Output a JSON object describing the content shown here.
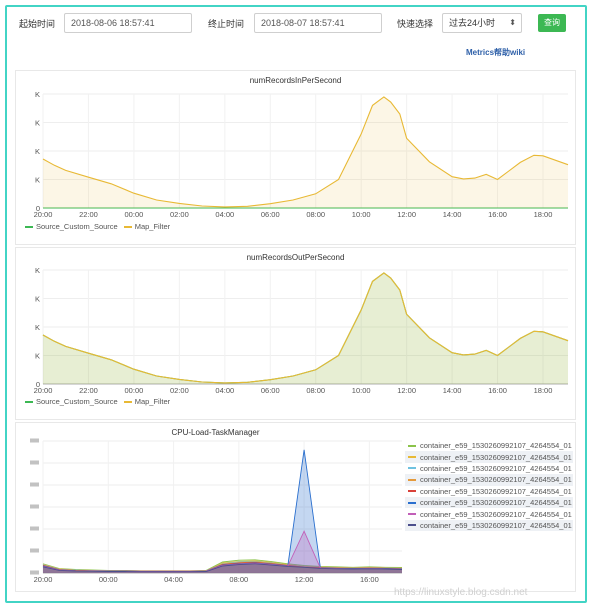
{
  "toolbar": {
    "start_label": "起始时间",
    "start_value": "2018-08-06 18:57:41",
    "end_label": "终止时间",
    "end_value": "2018-08-07 18:57:41",
    "quick_label": "快速选择",
    "quick_value": "过去24小时",
    "query_label": "查询",
    "wiki_label": "Metrics帮助wiki"
  },
  "colors": {
    "accent": "#42d4c5",
    "query_button": "#3cb853",
    "wiki_link": "#2d5fa8"
  },
  "chart_data": [
    {
      "type": "area",
      "title": "numRecordsInPerSecond",
      "x_ticks": [
        "20:00",
        "22:00",
        "00:00",
        "02:00",
        "04:00",
        "06:00",
        "08:00",
        "10:00",
        "12:00",
        "14:00",
        "16:00",
        "18:00"
      ],
      "y_ticks": [
        "0",
        "K",
        "K",
        "K",
        "K"
      ],
      "legend_position": "bottom-left",
      "series": [
        {
          "name": "Source_Custom_Source",
          "color": "#3cb853",
          "x": [
            0,
            2,
            4,
            6,
            8,
            10,
            12,
            14,
            16,
            18,
            20,
            22,
            23.1
          ],
          "y": [
            0,
            0,
            0,
            0,
            0,
            0,
            0,
            0,
            0,
            0,
            0,
            0,
            0
          ]
        },
        {
          "name": "Map_Filter",
          "color": "#e8b935",
          "x": [
            0,
            0.5,
            1,
            2,
            3,
            4,
            5,
            6,
            7,
            8,
            9,
            10,
            11,
            12,
            13,
            14,
            14.5,
            15,
            15.3,
            15.7,
            16,
            17,
            18,
            18.5,
            19,
            19.5,
            20,
            21,
            21.6,
            22,
            23.1
          ],
          "y": [
            1.72,
            1.5,
            1.32,
            1.08,
            0.85,
            0.52,
            0.28,
            0.16,
            0.07,
            0.04,
            0.06,
            0.15,
            0.28,
            0.5,
            1.0,
            2.6,
            3.6,
            3.9,
            3.72,
            3.3,
            2.45,
            1.62,
            1.1,
            1.02,
            1.05,
            1.18,
            1.0,
            1.6,
            1.85,
            1.83,
            1.52
          ]
        }
      ]
    },
    {
      "type": "area",
      "title": "numRecordsOutPerSecond",
      "x_ticks": [
        "20:00",
        "22:00",
        "00:00",
        "02:00",
        "04:00",
        "06:00",
        "08:00",
        "10:00",
        "12:00",
        "14:00",
        "16:00",
        "18:00"
      ],
      "y_ticks": [
        "0",
        "K",
        "K",
        "K",
        "K"
      ],
      "legend_position": "bottom-left",
      "series": [
        {
          "name": "Source_Custom_Source",
          "color": "#3cb853",
          "x": [
            0,
            0.5,
            1,
            2,
            3,
            4,
            5,
            6,
            7,
            8,
            9,
            10,
            11,
            12,
            13,
            14,
            14.5,
            15,
            15.3,
            15.7,
            16,
            17,
            18,
            18.5,
            19,
            19.5,
            20,
            21,
            21.6,
            22,
            23.1
          ],
          "y": [
            1.72,
            1.5,
            1.32,
            1.08,
            0.85,
            0.52,
            0.28,
            0.16,
            0.07,
            0.04,
            0.06,
            0.15,
            0.28,
            0.5,
            1.0,
            2.6,
            3.6,
            3.9,
            3.72,
            3.3,
            2.45,
            1.62,
            1.1,
            1.02,
            1.05,
            1.18,
            1.0,
            1.6,
            1.85,
            1.83,
            1.52
          ]
        },
        {
          "name": "Map_Filter",
          "color": "#e8b935",
          "x": [
            0,
            0.5,
            1,
            2,
            3,
            4,
            5,
            6,
            7,
            8,
            9,
            10,
            11,
            12,
            13,
            14,
            14.5,
            15,
            15.3,
            15.7,
            16,
            17,
            18,
            18.5,
            19,
            19.5,
            20,
            21,
            21.6,
            22,
            23.1
          ],
          "y": [
            1.72,
            1.5,
            1.32,
            1.08,
            0.85,
            0.52,
            0.28,
            0.16,
            0.07,
            0.04,
            0.06,
            0.15,
            0.28,
            0.5,
            1.0,
            2.6,
            3.6,
            3.9,
            3.72,
            3.3,
            2.45,
            1.62,
            1.1,
            1.02,
            1.05,
            1.18,
            1.0,
            1.6,
            1.85,
            1.83,
            1.52
          ]
        }
      ]
    },
    {
      "type": "area",
      "title": "CPU-Load-TaskManager",
      "x_ticks": [
        "20:00",
        "00:00",
        "04:00",
        "08:00",
        "12:00",
        "16:00"
      ],
      "legend_position": "right",
      "spike_hours": [
        4,
        15.1,
        15.7,
        16.5
      ],
      "series": [
        {
          "name": "container_e59_1530260992107_4264554_01",
          "color": "#8bc34a",
          "y": [
            0.42,
            0.2,
            0.16,
            0.14,
            0.12,
            0.12,
            0.1,
            0.1,
            0.1,
            0.1,
            0.12,
            0.5,
            0.58,
            0.6,
            0.52,
            0.42,
            0.34,
            0.3,
            0.28,
            0.26,
            0.28,
            0.26,
            0.25
          ]
        },
        {
          "name": "container_e59_1530260992107_4264554_01",
          "color": "#e8b935",
          "y": [
            0.4,
            0.18,
            0.14,
            0.12,
            0.1,
            0.1,
            0.09,
            0.09,
            0.09,
            0.09,
            0.1,
            0.45,
            0.52,
            0.55,
            0.48,
            0.38,
            0.3,
            0.27,
            0.25,
            0.24,
            0.25,
            0.24,
            0.22
          ]
        },
        {
          "name": "container_e59_1530260992107_4264554_01",
          "color": "#6fc2e0",
          "y": [
            0.38,
            0.17,
            0.13,
            0.11,
            0.1,
            0.1,
            0.09,
            0.09,
            0.09,
            0.09,
            0.1,
            0.42,
            0.5,
            0.52,
            0.46,
            0.36,
            0.29,
            0.26,
            0.24,
            0.23,
            0.24,
            0.23,
            0.21
          ]
        },
        {
          "name": "container_e59_1530260992107_4264554_01",
          "color": "#e59a3c",
          "y": [
            0.36,
            0.16,
            0.12,
            0.1,
            0.09,
            0.09,
            0.08,
            0.08,
            0.08,
            0.08,
            0.09,
            0.4,
            0.47,
            0.5,
            0.44,
            0.35,
            0.28,
            0.25,
            0.23,
            0.22,
            0.23,
            0.22,
            0.2
          ]
        },
        {
          "name": "container_e59_1530260992107_4264554_01",
          "color": "#d9413a",
          "y": [
            0.34,
            0.15,
            0.11,
            0.1,
            0.09,
            0.09,
            0.08,
            0.08,
            0.08,
            0.08,
            0.09,
            0.38,
            0.45,
            0.48,
            0.42,
            0.34,
            0.27,
            0.24,
            0.22,
            0.21,
            0.22,
            0.21,
            0.19
          ]
        },
        {
          "name": "container_e59_1530260992107_4264554_01",
          "color": "#2a6fce",
          "y": [
            0.32,
            0.14,
            0.1,
            0.09,
            0.08,
            0.08,
            0.07,
            0.07,
            0.07,
            0.07,
            0.08,
            0.36,
            0.42,
            0.46,
            0.4,
            0.32,
            5.6,
            0.23,
            0.21,
            0.2,
            0.21,
            0.2,
            0.18
          ]
        },
        {
          "name": "container_e59_1530260992107_4264554_01",
          "color": "#c25fb8",
          "y": [
            0.3,
            0.13,
            0.1,
            0.09,
            0.08,
            0.08,
            0.07,
            0.07,
            0.07,
            0.07,
            0.08,
            0.34,
            0.4,
            0.44,
            0.38,
            0.31,
            1.9,
            0.22,
            0.2,
            0.19,
            0.2,
            0.19,
            0.17
          ]
        },
        {
          "name": "container_e59_1530260992107_4264554_01",
          "color": "#4b4f8c",
          "y": [
            0.28,
            0.12,
            0.09,
            0.08,
            0.07,
            0.07,
            0.06,
            0.06,
            0.06,
            0.06,
            0.07,
            0.32,
            0.38,
            0.42,
            0.36,
            0.3,
            0.26,
            0.21,
            0.19,
            0.18,
            0.19,
            0.18,
            0.16
          ]
        }
      ]
    }
  ],
  "watermark": "https://linuxstyle.blog.csdn.net"
}
